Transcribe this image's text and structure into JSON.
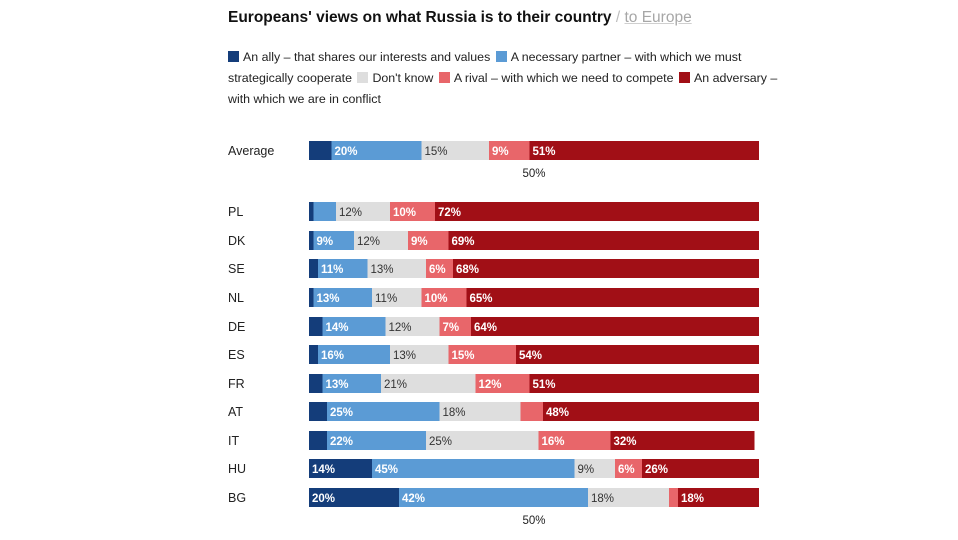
{
  "title": {
    "main": "Europeans' views on what Russia is to their country",
    "separator": "/",
    "link": "to Europe"
  },
  "colors": {
    "ally": "#143d7a",
    "partner": "#5b9bd5",
    "dontknow": "#dedede",
    "rival": "#e8666a",
    "adversary": "#a10f16"
  },
  "legend": [
    {
      "key": "ally",
      "label": "An ally – that shares our interests and values"
    },
    {
      "key": "partner",
      "label": "A necessary partner – with which we must strategically cooperate"
    },
    {
      "key": "dontknow",
      "label": "Don't know"
    },
    {
      "key": "rival",
      "label": "A rival – with which we need to compete"
    },
    {
      "key": "adversary",
      "label": "An adversary – with which we are in conflict"
    }
  ],
  "chart_data": {
    "type": "bar",
    "orientation": "horizontal",
    "stacked": true,
    "normalized_percent": true,
    "xlim": [
      0,
      100
    ],
    "reference_line": {
      "value": 50,
      "label": "50%"
    },
    "series_order": [
      "ally",
      "partner",
      "dontknow",
      "rival",
      "adversary"
    ],
    "rows": [
      {
        "label": "Average",
        "values": {
          "ally": 5,
          "partner": 20,
          "dontknow": 15,
          "rival": 9,
          "adversary": 51
        }
      },
      {
        "label": "PL",
        "values": {
          "ally": 1,
          "partner": 5,
          "dontknow": 12,
          "rival": 10,
          "adversary": 72
        }
      },
      {
        "label": "DK",
        "values": {
          "ally": 1,
          "partner": 9,
          "dontknow": 12,
          "rival": 9,
          "adversary": 69
        }
      },
      {
        "label": "SE",
        "values": {
          "ally": 2,
          "partner": 11,
          "dontknow": 13,
          "rival": 6,
          "adversary": 68
        }
      },
      {
        "label": "NL",
        "values": {
          "ally": 1,
          "partner": 13,
          "dontknow": 11,
          "rival": 10,
          "adversary": 65
        }
      },
      {
        "label": "DE",
        "values": {
          "ally": 3,
          "partner": 14,
          "dontknow": 12,
          "rival": 7,
          "adversary": 64
        }
      },
      {
        "label": "ES",
        "values": {
          "ally": 2,
          "partner": 16,
          "dontknow": 13,
          "rival": 15,
          "adversary": 54
        }
      },
      {
        "label": "FR",
        "values": {
          "ally": 3,
          "partner": 13,
          "dontknow": 21,
          "rival": 12,
          "adversary": 51
        }
      },
      {
        "label": "AT",
        "values": {
          "ally": 4,
          "partner": 25,
          "dontknow": 18,
          "rival": 5,
          "adversary": 48
        }
      },
      {
        "label": "IT",
        "values": {
          "ally": 4,
          "partner": 22,
          "dontknow": 25,
          "rival": 16,
          "adversary": 32
        }
      },
      {
        "label": "HU",
        "values": {
          "ally": 14,
          "partner": 45,
          "dontknow": 9,
          "rival": 6,
          "adversary": 26
        }
      },
      {
        "label": "BG",
        "values": {
          "ally": 20,
          "partner": 42,
          "dontknow": 18,
          "rival": 2,
          "adversary": 18
        }
      }
    ],
    "printed_labels": [
      {
        "partner": "20%",
        "dontknow": "15%",
        "rival": "9%",
        "adversary": "51%"
      },
      {
        "dontknow": "12%",
        "rival": "10%",
        "adversary": "72%"
      },
      {
        "partner": "9%",
        "dontknow": "12%",
        "rival": "9%",
        "adversary": "69%"
      },
      {
        "partner": "11%",
        "dontknow": "13%",
        "rival": "6%",
        "adversary": "68%"
      },
      {
        "partner": "13%",
        "dontknow": "11%",
        "rival": "10%",
        "adversary": "65%"
      },
      {
        "partner": "14%",
        "dontknow": "12%",
        "rival": "7%",
        "adversary": "64%"
      },
      {
        "partner": "16%",
        "dontknow": "13%",
        "rival": "15%",
        "adversary": "54%"
      },
      {
        "partner": "13%",
        "dontknow": "21%",
        "rival": "12%",
        "adversary": "51%"
      },
      {
        "partner": "25%",
        "dontknow": "18%",
        "adversary": "48%"
      },
      {
        "partner": "22%",
        "dontknow": "25%",
        "rival": "16%",
        "adversary": "32%"
      },
      {
        "ally": "14%",
        "partner": "45%",
        "dontknow": "9%",
        "rival": "6%",
        "adversary": "26%"
      },
      {
        "ally": "20%",
        "partner": "42%",
        "dontknow": "18%",
        "adversary": "18%"
      }
    ]
  }
}
